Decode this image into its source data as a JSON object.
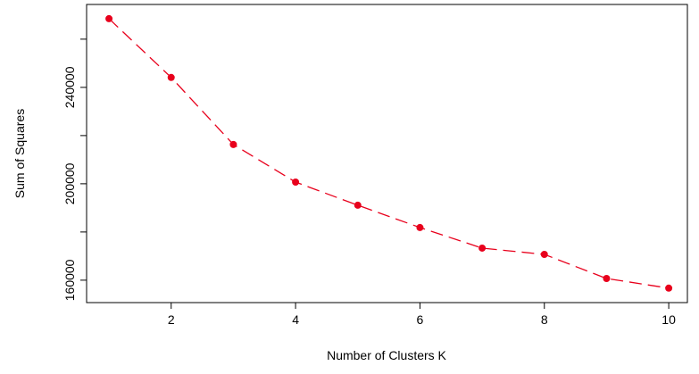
{
  "chart_data": {
    "type": "line",
    "x_label": "Number of Clusters K",
    "y_label": "Sum of Squares",
    "x": [
      1,
      2,
      3,
      4,
      5,
      6,
      7,
      8,
      9,
      10
    ],
    "series": [
      {
        "color": "#e8001c",
        "values": [
          268500,
          244100,
          216300,
          200700,
          191100,
          181850,
          173300,
          170700,
          160700,
          156700
        ]
      }
    ],
    "xlim": [
      0.64,
      10.3
    ],
    "xticks": [
      2,
      4,
      6,
      8,
      10
    ],
    "ylim": [
      150700,
      274400
    ],
    "yticks": [
      160000,
      {
        "value": 180000,
        "label": null
      },
      200000,
      {
        "value": 220000,
        "label": null
      },
      240000,
      {
        "value": 260000,
        "label": null
      }
    ]
  }
}
